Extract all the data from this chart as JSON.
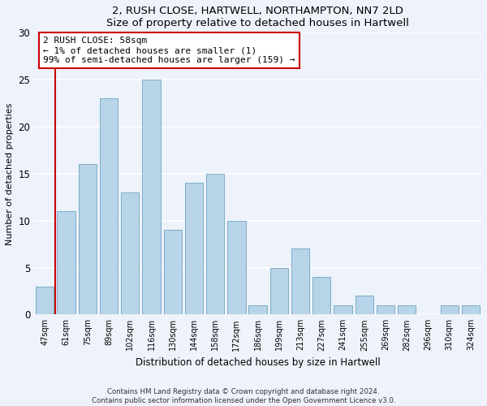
{
  "title": "2, RUSH CLOSE, HARTWELL, NORTHAMPTON, NN7 2LD",
  "subtitle": "Size of property relative to detached houses in Hartwell",
  "xlabel": "Distribution of detached houses by size in Hartwell",
  "ylabel": "Number of detached properties",
  "bar_color": "#b8d4e8",
  "bar_edge_color": "#7aaec8",
  "bins": [
    "47sqm",
    "61sqm",
    "75sqm",
    "89sqm",
    "102sqm",
    "116sqm",
    "130sqm",
    "144sqm",
    "158sqm",
    "172sqm",
    "186sqm",
    "199sqm",
    "213sqm",
    "227sqm",
    "241sqm",
    "255sqm",
    "269sqm",
    "282sqm",
    "296sqm",
    "310sqm",
    "324sqm"
  ],
  "values": [
    3,
    11,
    16,
    23,
    13,
    25,
    9,
    14,
    15,
    10,
    1,
    5,
    7,
    4,
    1,
    2,
    1,
    1,
    0,
    1,
    1
  ],
  "ylim": [
    0,
    30
  ],
  "yticks": [
    0,
    5,
    10,
    15,
    20,
    25,
    30
  ],
  "annotation_text": "2 RUSH CLOSE: 58sqm\n← 1% of detached houses are smaller (1)\n99% of semi-detached houses are larger (159) →",
  "annotation_box_color": "#ffffff",
  "annotation_box_edge": "#cc0000",
  "marker_line_color": "#cc0000",
  "footer_line1": "Contains HM Land Registry data © Crown copyright and database right 2024.",
  "footer_line2": "Contains public sector information licensed under the Open Government Licence v3.0.",
  "background_color": "#eef2fa",
  "plot_background": "#eef2fa",
  "grid_color": "#ffffff"
}
